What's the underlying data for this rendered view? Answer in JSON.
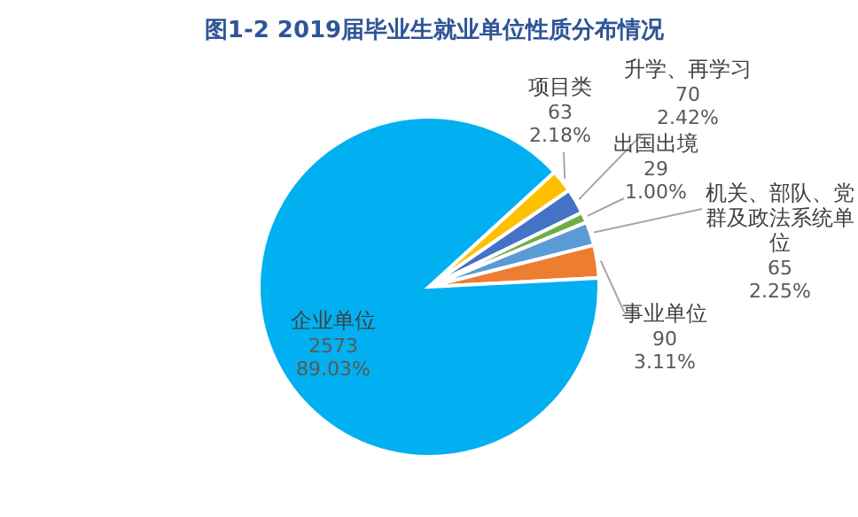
{
  "chart_data": {
    "type": "pie",
    "title": "图1-2 2019届毕业生就业单位性质分布情况",
    "categories": [
      "项目类",
      "升学、再学习",
      "出国出境",
      "机关、部队、党群及政法系统单位",
      "事业单位",
      "企业单位"
    ],
    "values": [
      63,
      70,
      29,
      65,
      90,
      2573
    ],
    "colors": [
      "#ffc000",
      "#4472c4",
      "#70ad47",
      "#5b9bd5",
      "#ed7d31",
      "#00b0f0"
    ],
    "value_labels": [
      "63\n2.18%",
      "70\n2.42%",
      "29\n1.00%",
      "65\n2.25%",
      "90\n3.11%",
      "2573\n89.03%"
    ]
  }
}
